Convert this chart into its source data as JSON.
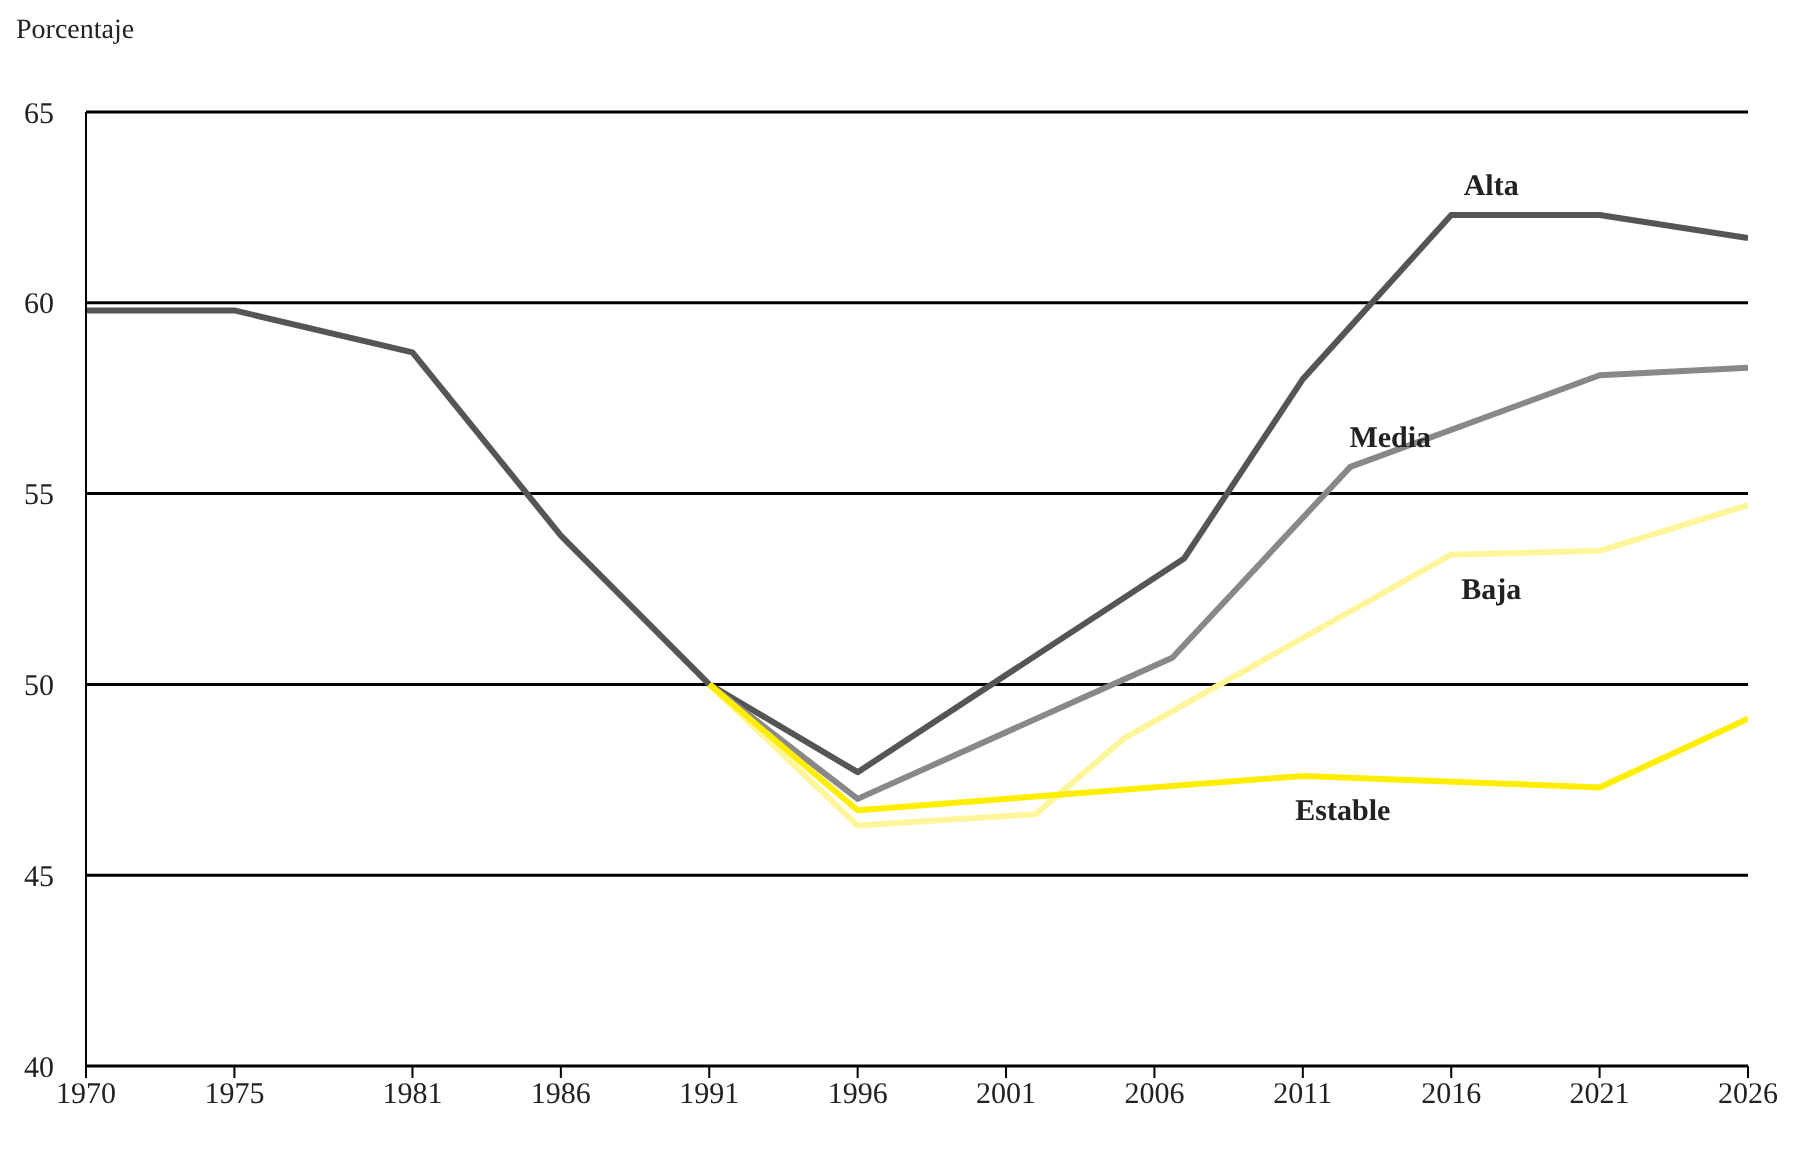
{
  "chart_data": {
    "type": "line",
    "ylabel": "Porcentaje",
    "xlim": [
      1970,
      2026
    ],
    "xticks": [
      1970,
      1975,
      1981,
      1986,
      1991,
      1996,
      2001,
      2006,
      2011,
      2016,
      2021,
      2026
    ],
    "ylim": [
      40,
      65
    ],
    "yticks": [
      40,
      45,
      50,
      55,
      60,
      65
    ],
    "grid": "y",
    "legend": false,
    "marker": "none",
    "line_style": "solid",
    "series": [
      {
        "name": "Alta",
        "color": "#555555",
        "x": [
          1970,
          1975,
          1981,
          1986,
          1991,
          1996,
          2007,
          2011,
          2016,
          2021,
          2026
        ],
        "values": [
          59.8,
          59.8,
          58.7,
          53.9,
          50,
          47.7,
          53.3,
          58,
          62.3,
          62.3,
          61.7
        ]
      },
      {
        "name": "Media",
        "color": "#888888",
        "x": [
          1991,
          1996,
          2006.6,
          2012.6,
          2021,
          2026
        ],
        "values": [
          50,
          47,
          50.7,
          55.7,
          58.1,
          58.3
        ]
      },
      {
        "name": "Baja",
        "color": "#fff59a",
        "x": [
          1991,
          1996,
          2002,
          2005,
          2016,
          2021,
          2026
        ],
        "values": [
          50,
          46.3,
          46.6,
          48.6,
          53.4,
          53.5,
          54.7
        ]
      },
      {
        "name": "Estable",
        "color": "#ffee00",
        "x": [
          1991,
          1996,
          2011,
          2021,
          2026
        ],
        "values": [
          50,
          46.7,
          47.6,
          47.3,
          49.1
        ]
      }
    ]
  }
}
